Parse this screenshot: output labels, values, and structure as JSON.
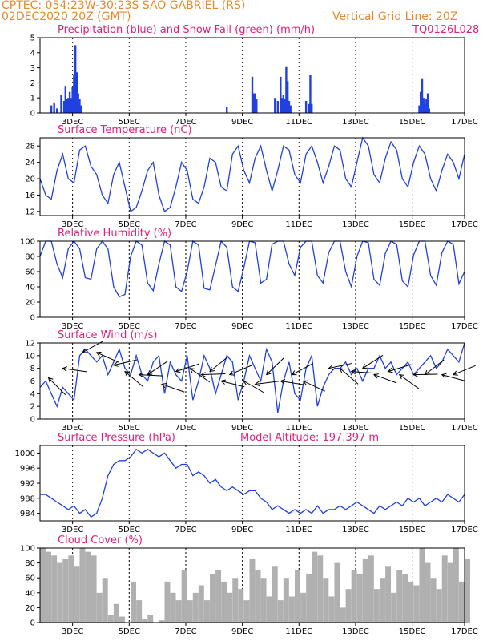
{
  "header": {
    "station": "CPTEC:  054:23W-30:23S  SAO GABRIEL (RS)",
    "run": "02DEC2020 20Z (GMT)",
    "grid_note": "Vertical Grid Line: 20Z",
    "code": "TQ0126L028"
  },
  "colors": {
    "header": "#e8892a",
    "title": "#e0207a",
    "line": "#2040e0",
    "snow": "#10a030",
    "cloud": "#b0b0b0"
  },
  "x_axis": {
    "start": "02DEC2020 20Z",
    "tick_labels": [
      "3DEC",
      "5DEC",
      "7DEC",
      "9DEC",
      "11DEC",
      "13DEC",
      "15DEC",
      "17DEC"
    ]
  },
  "chart_data": [
    {
      "id": "precip",
      "type": "bar",
      "title": "Precipitation (blue) and Snow Fall (green) (mm/h)",
      "ylim": [
        0,
        5
      ],
      "yticks": [
        0,
        1,
        2,
        3,
        4,
        5
      ],
      "series": [
        {
          "name": "Precipitation",
          "color": "#2040e0",
          "points": [
            [
              0.4,
              0.5
            ],
            [
              0.5,
              0.7
            ],
            [
              0.6,
              0.3
            ],
            [
              0.75,
              1.2
            ],
            [
              0.85,
              0.8
            ],
            [
              0.9,
              1.8
            ],
            [
              0.95,
              0.9
            ],
            [
              1.0,
              1.0
            ],
            [
              1.05,
              1.4
            ],
            [
              1.1,
              1.0
            ],
            [
              1.15,
              1.7
            ],
            [
              1.2,
              2.5
            ],
            [
              1.25,
              4.5
            ],
            [
              1.3,
              2.7
            ],
            [
              1.35,
              1.3
            ],
            [
              1.4,
              0.9
            ],
            [
              1.45,
              0.5
            ],
            [
              6.6,
              0.4
            ],
            [
              7.5,
              2.4
            ],
            [
              7.55,
              1.3
            ],
            [
              7.6,
              1.3
            ],
            [
              7.65,
              0.9
            ],
            [
              8.3,
              1.0
            ],
            [
              8.4,
              0.8
            ],
            [
              8.5,
              2.4
            ],
            [
              8.55,
              1.0
            ],
            [
              8.6,
              1.2
            ],
            [
              8.65,
              0.9
            ],
            [
              8.7,
              3.1
            ],
            [
              8.75,
              2.1
            ],
            [
              8.8,
              0.8
            ],
            [
              8.85,
              0.5
            ],
            [
              9.4,
              0.8
            ],
            [
              9.5,
              0.6
            ],
            [
              9.55,
              2.5
            ],
            [
              9.6,
              0.6
            ],
            [
              13.4,
              0.5
            ],
            [
              13.45,
              1.4
            ],
            [
              13.5,
              2.3
            ],
            [
              13.55,
              1.0
            ],
            [
              13.6,
              0.6
            ],
            [
              13.65,
              0.9
            ],
            [
              13.7,
              1.3
            ],
            [
              13.75,
              0.3
            ]
          ]
        },
        {
          "name": "Snow Fall",
          "color": "#10a030",
          "points": []
        }
      ]
    },
    {
      "id": "temp",
      "type": "line",
      "title": "Surface Temperature (nC)",
      "ylim": [
        11,
        30
      ],
      "yticks": [
        12,
        16,
        20,
        24,
        28
      ],
      "x": [
        0,
        0.2,
        0.4,
        0.6,
        0.8,
        1.0,
        1.2,
        1.4,
        1.6,
        1.8,
        2.0,
        2.2,
        2.4,
        2.6,
        2.8,
        3.0,
        3.2,
        3.4,
        3.6,
        3.8,
        4.0,
        4.2,
        4.4,
        4.6,
        4.8,
        5.0,
        5.2,
        5.4,
        5.6,
        5.8,
        6.0,
        6.2,
        6.4,
        6.6,
        6.8,
        7.0,
        7.2,
        7.4,
        7.6,
        7.8,
        8.0,
        8.2,
        8.4,
        8.6,
        8.8,
        9.0,
        9.2,
        9.4,
        9.6,
        9.8,
        10.0,
        10.2,
        10.4,
        10.6,
        10.8,
        11.0,
        11.2,
        11.4,
        11.6,
        11.8,
        12.0,
        12.2,
        12.4,
        12.6,
        12.8,
        13.0,
        13.2,
        13.4,
        13.6,
        13.8,
        14.0,
        14.2,
        14.4,
        14.6,
        14.8,
        15.0
      ],
      "y": [
        20,
        16,
        15,
        22,
        26,
        20,
        19,
        27,
        28,
        23,
        21,
        16,
        14,
        21,
        24,
        18,
        12,
        13,
        17,
        22,
        24,
        16,
        12,
        13,
        18,
        24,
        22,
        15,
        14,
        18,
        25,
        24,
        18,
        17,
        26,
        28,
        22,
        19,
        25,
        28,
        22,
        17,
        22,
        28,
        27,
        21,
        19,
        26,
        28,
        24,
        19,
        23,
        28,
        27,
        20,
        18,
        24,
        30,
        28,
        21,
        19,
        25,
        29,
        27,
        20,
        18,
        24,
        28,
        26,
        20,
        17,
        22,
        26,
        24,
        20,
        26
      ],
      "color": "#2040e0"
    },
    {
      "id": "rh",
      "type": "line",
      "title": "Relative Humidity (%)",
      "ylim": [
        0,
        100
      ],
      "yticks": [
        0,
        20,
        40,
        60,
        80,
        100
      ],
      "x": [
        0,
        0.2,
        0.4,
        0.6,
        0.8,
        1.0,
        1.2,
        1.4,
        1.6,
        1.8,
        2.0,
        2.2,
        2.4,
        2.6,
        2.8,
        3.0,
        3.2,
        3.4,
        3.6,
        3.8,
        4.0,
        4.2,
        4.4,
        4.6,
        4.8,
        5.0,
        5.2,
        5.4,
        5.6,
        5.8,
        6.0,
        6.2,
        6.4,
        6.6,
        6.8,
        7.0,
        7.2,
        7.4,
        7.6,
        7.8,
        8.0,
        8.2,
        8.4,
        8.6,
        8.8,
        9.0,
        9.2,
        9.4,
        9.6,
        9.8,
        10.0,
        10.2,
        10.4,
        10.6,
        10.8,
        11.0,
        11.2,
        11.4,
        11.6,
        11.8,
        12.0,
        12.2,
        12.4,
        12.6,
        12.8,
        13.0,
        13.2,
        13.4,
        13.6,
        13.8,
        14.0,
        14.2,
        14.4,
        14.6,
        14.8,
        15.0
      ],
      "y": [
        80,
        100,
        100,
        70,
        52,
        90,
        100,
        90,
        52,
        50,
        90,
        100,
        90,
        40,
        27,
        30,
        80,
        100,
        95,
        45,
        35,
        70,
        100,
        95,
        40,
        34,
        60,
        100,
        95,
        38,
        36,
        68,
        100,
        92,
        40,
        34,
        65,
        100,
        98,
        45,
        50,
        96,
        100,
        100,
        70,
        55,
        92,
        100,
        100,
        55,
        45,
        85,
        100,
        100,
        60,
        40,
        80,
        100,
        98,
        50,
        42,
        84,
        100,
        96,
        48,
        40,
        82,
        100,
        100,
        55,
        42,
        85,
        100,
        96,
        44,
        60
      ],
      "color": "#2040e0"
    },
    {
      "id": "wind",
      "type": "line",
      "title": "Surface Wind (m/s)",
      "ylim": [
        0,
        12
      ],
      "yticks": [
        0,
        2,
        4,
        6,
        8,
        10,
        12
      ],
      "x": [
        0,
        0.2,
        0.4,
        0.6,
        0.8,
        1.0,
        1.2,
        1.4,
        1.6,
        1.8,
        2.0,
        2.2,
        2.4,
        2.6,
        2.8,
        3.0,
        3.2,
        3.4,
        3.6,
        3.8,
        4.0,
        4.2,
        4.4,
        4.6,
        4.8,
        5.0,
        5.2,
        5.4,
        5.6,
        5.8,
        6.0,
        6.2,
        6.4,
        6.6,
        6.8,
        7.0,
        7.2,
        7.4,
        7.6,
        7.8,
        8.0,
        8.2,
        8.4,
        8.6,
        8.8,
        9.0,
        9.2,
        9.4,
        9.6,
        9.8,
        10.0,
        10.2,
        10.4,
        10.6,
        10.8,
        11.0,
        11.2,
        11.4,
        11.6,
        11.8,
        12.0,
        12.2,
        12.4,
        12.6,
        12.8,
        13.0,
        13.2,
        13.4,
        13.6,
        13.8,
        14.0,
        14.2,
        14.4,
        14.6,
        14.8,
        15.0
      ],
      "y": [
        5,
        6,
        4,
        2,
        5,
        4,
        3,
        10,
        11,
        10,
        9,
        10,
        7,
        9,
        11,
        8,
        7,
        10,
        7,
        6,
        9,
        10,
        4,
        9,
        7,
        6,
        10,
        3,
        6,
        10,
        8,
        4,
        7,
        10,
        9,
        3,
        6,
        10,
        8,
        6,
        11,
        9,
        1,
        6,
        9,
        4,
        3,
        8,
        10,
        2,
        5,
        7,
        8,
        8,
        9,
        7,
        8,
        6,
        8,
        8,
        10,
        8,
        9,
        7,
        8,
        9,
        7,
        8,
        9,
        10,
        8,
        9,
        11,
        10,
        9,
        12
      ],
      "color": "#2040e0",
      "arrows": [
        [
          0.3,
          6.5
        ],
        [
          0.8,
          8
        ],
        [
          1.5,
          10.5
        ],
        [
          2.0,
          10.5
        ],
        [
          2.6,
          8.5
        ],
        [
          3.0,
          7.5
        ],
        [
          3.5,
          7
        ],
        [
          3.8,
          7
        ],
        [
          4.3,
          5.5
        ],
        [
          4.8,
          7.5
        ],
        [
          5.3,
          8
        ],
        [
          5.7,
          7
        ],
        [
          6.0,
          7.5
        ],
        [
          6.4,
          6
        ],
        [
          6.7,
          7
        ],
        [
          7.2,
          6
        ],
        [
          7.6,
          5.5
        ],
        [
          8.0,
          7
        ],
        [
          8.5,
          6
        ],
        [
          8.9,
          7
        ],
        [
          9.3,
          6
        ],
        [
          10.2,
          8
        ],
        [
          10.6,
          8
        ],
        [
          11.0,
          7.5
        ],
        [
          11.4,
          8
        ],
        [
          11.8,
          7
        ],
        [
          12.3,
          7.5
        ],
        [
          12.7,
          7
        ],
        [
          13.2,
          7
        ],
        [
          13.6,
          7
        ],
        [
          14.2,
          7
        ],
        [
          14.6,
          7
        ]
      ]
    },
    {
      "id": "pressure",
      "type": "line",
      "title": "Surface Pressure (hPa)",
      "subtitle": "Model Altitude: 197.397 m",
      "ylim": [
        982,
        1002
      ],
      "yticks": [
        984,
        988,
        992,
        996,
        1000
      ],
      "x": [
        0,
        0.2,
        0.4,
        0.6,
        0.8,
        1.0,
        1.2,
        1.4,
        1.6,
        1.8,
        2.0,
        2.2,
        2.4,
        2.6,
        2.8,
        3.0,
        3.2,
        3.4,
        3.6,
        3.8,
        4.0,
        4.2,
        4.4,
        4.6,
        4.8,
        5.0,
        5.2,
        5.4,
        5.6,
        5.8,
        6.0,
        6.2,
        6.4,
        6.6,
        6.8,
        7.0,
        7.2,
        7.4,
        7.6,
        7.8,
        8.0,
        8.2,
        8.4,
        8.6,
        8.8,
        9.0,
        9.2,
        9.4,
        9.6,
        9.8,
        10.0,
        10.2,
        10.4,
        10.6,
        10.8,
        11.0,
        11.2,
        11.4,
        11.6,
        11.8,
        12.0,
        12.2,
        12.4,
        12.6,
        12.8,
        13.0,
        13.2,
        13.4,
        13.6,
        13.8,
        14.0,
        14.2,
        14.4,
        14.6,
        14.8,
        15.0
      ],
      "y": [
        989,
        989,
        988,
        987,
        986,
        985,
        986,
        984,
        985,
        983,
        984,
        988,
        994,
        997,
        998,
        998,
        999,
        1001,
        1000,
        1001,
        1000,
        999,
        1000,
        998,
        996,
        997,
        997,
        994,
        995,
        994,
        992,
        993,
        991,
        990,
        991,
        990,
        989,
        990,
        990,
        988,
        987,
        985,
        986,
        985,
        984,
        985,
        984,
        985,
        984,
        986,
        984,
        985,
        985,
        986,
        985,
        986,
        987,
        986,
        985,
        984,
        986,
        985,
        986,
        987,
        986,
        988,
        987,
        988,
        986,
        987,
        988,
        987,
        989,
        988,
        987,
        989
      ],
      "color": "#2040e0"
    },
    {
      "id": "cloud",
      "type": "bar",
      "title": "Cloud Cover (%)",
      "ylim": [
        0,
        100
      ],
      "yticks": [
        0,
        20,
        40,
        60,
        80,
        100
      ],
      "x": [
        0,
        0.2,
        0.4,
        0.6,
        0.8,
        1.0,
        1.2,
        1.4,
        1.6,
        1.8,
        2.0,
        2.2,
        2.4,
        2.6,
        2.8,
        3.0,
        3.2,
        3.4,
        3.6,
        3.8,
        4.0,
        4.2,
        4.4,
        4.6,
        4.8,
        5.0,
        5.2,
        5.4,
        5.6,
        5.8,
        6.0,
        6.2,
        6.4,
        6.6,
        6.8,
        7.0,
        7.2,
        7.4,
        7.6,
        7.8,
        8.0,
        8.2,
        8.4,
        8.6,
        8.8,
        9.0,
        9.2,
        9.4,
        9.6,
        9.8,
        10.0,
        10.2,
        10.4,
        10.6,
        10.8,
        11.0,
        11.2,
        11.4,
        11.6,
        11.8,
        12.0,
        12.2,
        12.4,
        12.6,
        12.8,
        13.0,
        13.2,
        13.4,
        13.6,
        13.8,
        14.0,
        14.2,
        14.4,
        14.6,
        14.8,
        15.0
      ],
      "y": [
        100,
        95,
        90,
        80,
        85,
        90,
        75,
        100,
        95,
        90,
        40,
        60,
        10,
        25,
        8,
        0,
        55,
        30,
        5,
        10,
        0,
        3,
        55,
        40,
        30,
        70,
        30,
        40,
        50,
        30,
        65,
        70,
        55,
        40,
        60,
        45,
        30,
        85,
        70,
        60,
        35,
        75,
        30,
        60,
        35,
        70,
        40,
        65,
        95,
        90,
        60,
        35,
        80,
        20,
        45,
        70,
        65,
        85,
        90,
        45,
        60,
        75,
        40,
        70,
        65,
        55,
        50,
        100,
        80,
        60,
        45,
        90,
        80,
        100,
        55,
        85
      ],
      "color": "#b0b0b0"
    }
  ]
}
